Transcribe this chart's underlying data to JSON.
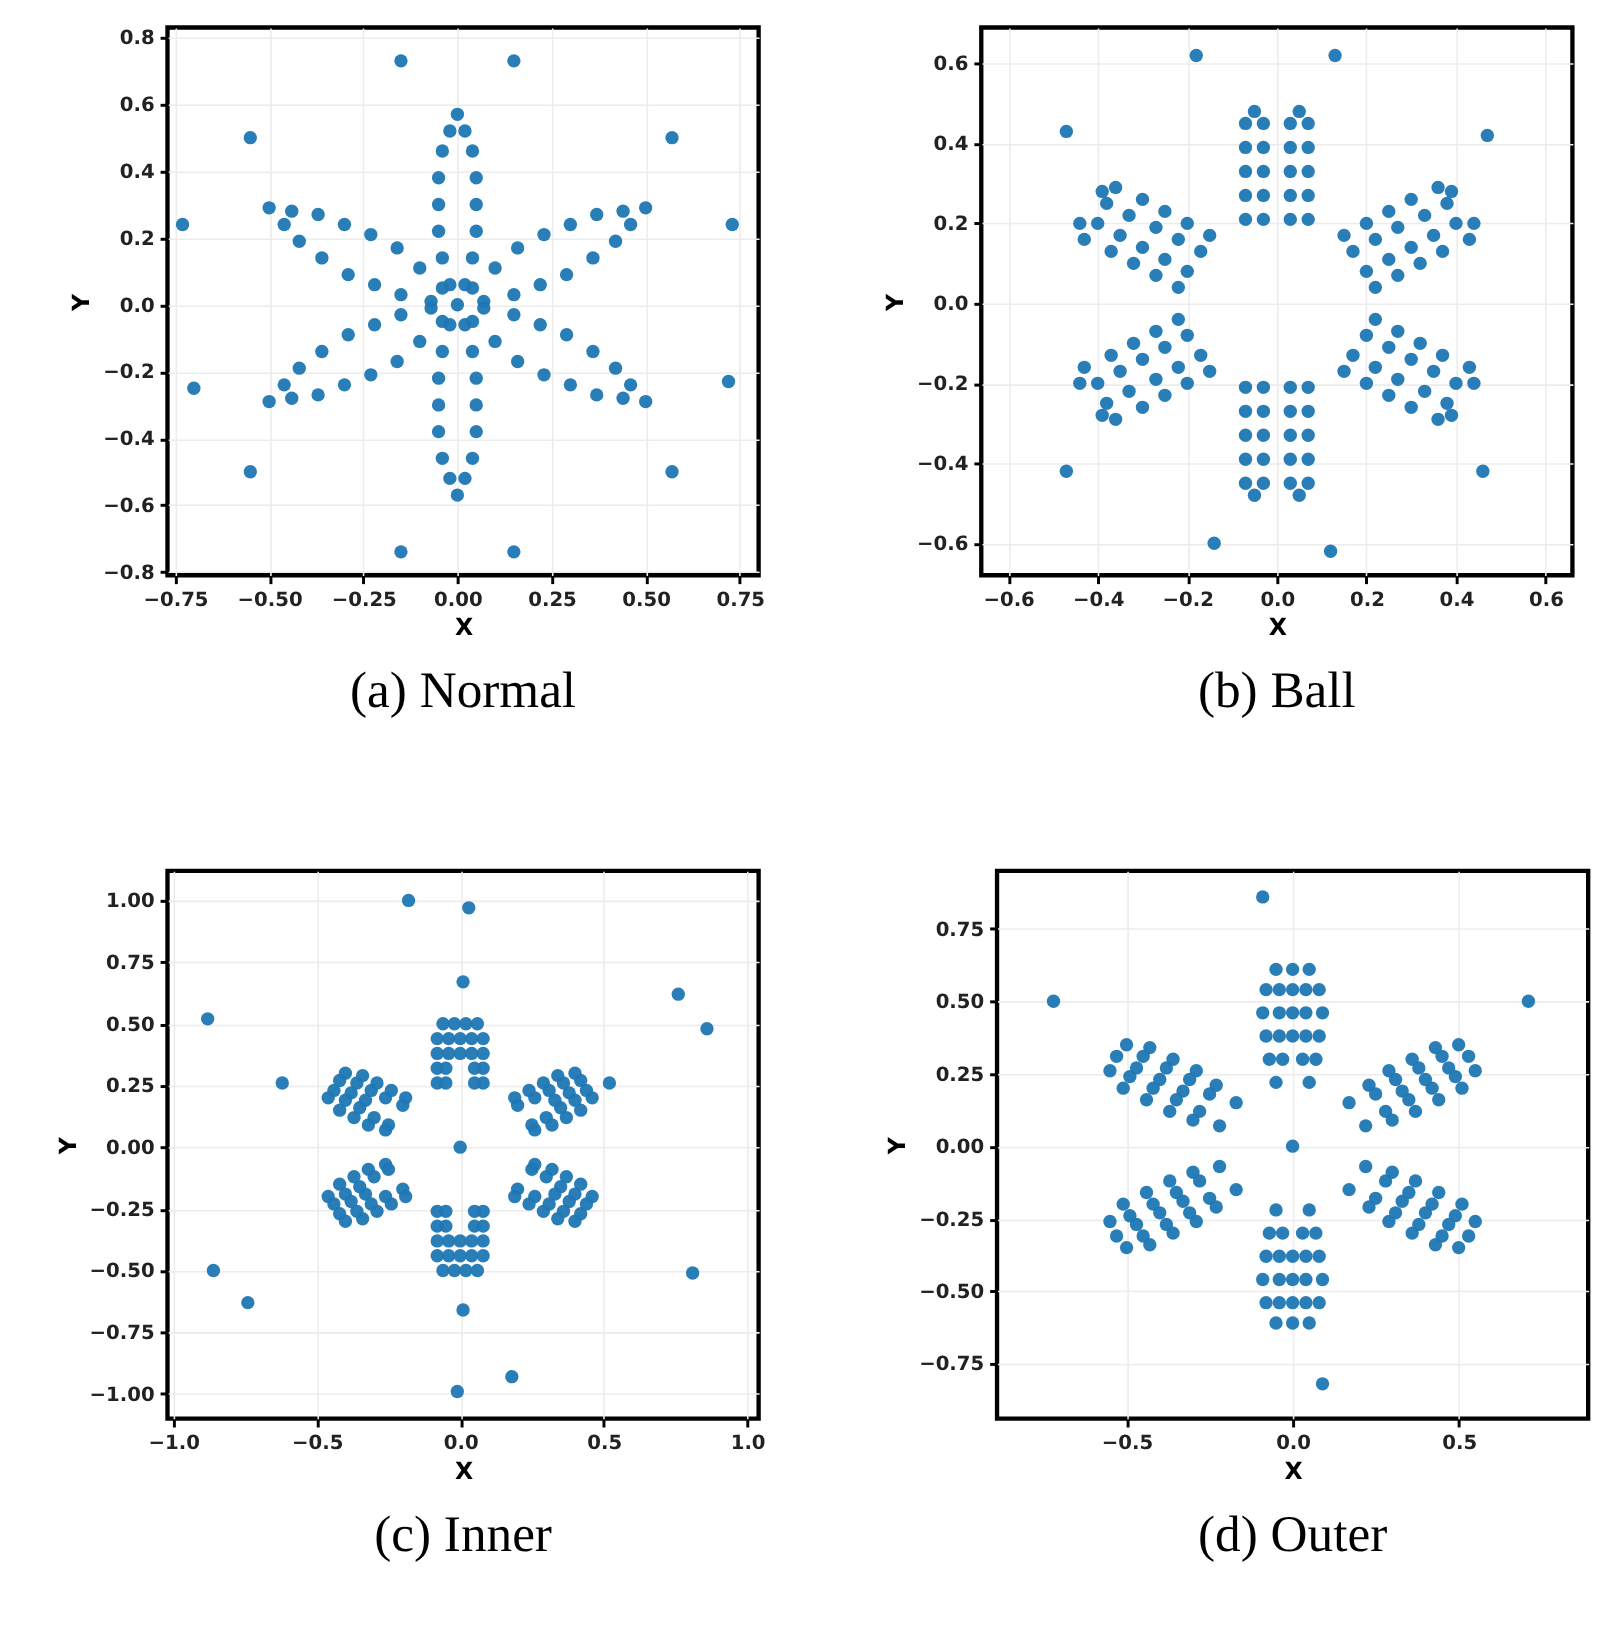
{
  "chart_data": [
    {
      "type": "scatter",
      "title": "(a) Normal",
      "xlabel": "X",
      "ylabel": "Y",
      "xlim": [
        -0.77,
        0.8
      ],
      "ylim": [
        -0.81,
        0.83
      ],
      "xticks": [
        {
          "value": -0.75,
          "label": "−0.75"
        },
        {
          "value": -0.5,
          "label": "−0.50"
        },
        {
          "value": -0.25,
          "label": "−0.25"
        },
        {
          "value": 0,
          "label": "0.00"
        },
        0.25,
        {
          "value": 0.5,
          "label": "0.50"
        },
        0.75
      ],
      "yticks": [
        {
          "value": -0.8,
          "label": "−0.8"
        },
        {
          "value": -0.6,
          "label": "−0.6"
        },
        {
          "value": -0.4,
          "label": "−0.4"
        },
        {
          "value": -0.2,
          "label": "−0.2"
        },
        {
          "value": 0,
          "label": "0.0"
        },
        0.2,
        0.4,
        0.6,
        0.8
      ],
      "grid": true,
      "marker": "circle",
      "series": [
        {
          "color": "#1f77b4",
          "x": [
            0.02,
            -0.02,
            0.04,
            -0.04,
            0.05,
            -0.05,
            0.05,
            -0.05,
            0.05,
            -0.05,
            0.04,
            -0.04,
            0.02,
            -0.02,
            0,
            0.02,
            -0.02,
            0.04,
            -0.04,
            0.05,
            -0.05,
            0.05,
            -0.05,
            0.05,
            -0.05,
            0.04,
            -0.04,
            0.02,
            -0.02,
            0,
            0.04,
            0.07,
            0.1,
            0.15,
            0.16,
            0.22,
            0.23,
            0.29,
            0.3,
            0.36,
            0.37,
            0.42,
            0.44,
            0.46,
            0.5,
            -0.04,
            -0.07,
            -0.1,
            -0.15,
            -0.16,
            -0.22,
            -0.23,
            -0.29,
            -0.3,
            -0.36,
            -0.37,
            -0.42,
            -0.44,
            -0.46,
            -0.5,
            0.04,
            0.07,
            0.1,
            0.15,
            0.16,
            0.22,
            0.23,
            0.29,
            0.3,
            0.36,
            0.37,
            0.42,
            0.44,
            0.46,
            0.5,
            -0.04,
            -0.07,
            -0.1,
            -0.15,
            -0.16,
            -0.22,
            -0.23,
            -0.29,
            -0.3,
            -0.36,
            -0.37,
            -0.42,
            -0.44,
            -0.46,
            -0.5,
            -0.15,
            0.15,
            -0.55,
            0.57,
            -0.73,
            0.73,
            -0.7,
            0.72,
            -0.55,
            0.57,
            -0.15,
            0.15,
            0
          ],
          "values": [
            0.06,
            0.06,
            0.14,
            0.14,
            0.22,
            0.22,
            0.3,
            0.3,
            0.38,
            0.38,
            0.46,
            0.46,
            0.52,
            0.52,
            0.57,
            -0.06,
            -0.06,
            -0.14,
            -0.14,
            -0.22,
            -0.22,
            -0.3,
            -0.3,
            -0.38,
            -0.38,
            -0.46,
            -0.46,
            -0.52,
            -0.52,
            -0.57,
            0.05,
            0.01,
            0.11,
            0.03,
            0.17,
            0.06,
            0.21,
            0.09,
            0.24,
            0.14,
            0.27,
            0.19,
            0.28,
            0.24,
            0.29,
            0.05,
            0.01,
            0.11,
            0.03,
            0.17,
            0.06,
            0.21,
            0.09,
            0.24,
            0.14,
            0.27,
            0.19,
            0.28,
            0.24,
            0.29,
            -0.05,
            -0.01,
            -0.11,
            -0.03,
            -0.17,
            -0.06,
            -0.21,
            -0.09,
            -0.24,
            -0.14,
            -0.27,
            -0.19,
            -0.28,
            -0.24,
            -0.29,
            -0.05,
            -0.01,
            -0.11,
            -0.03,
            -0.17,
            -0.06,
            -0.21,
            -0.09,
            -0.24,
            -0.14,
            -0.27,
            -0.19,
            -0.28,
            -0.24,
            -0.29,
            0.73,
            0.73,
            0.5,
            0.5,
            0.24,
            0.24,
            -0.25,
            -0.23,
            -0.5,
            -0.5,
            -0.74,
            -0.74,
            0
          ]
        }
      ]
    },
    {
      "type": "scatter",
      "title": "(b) Ball",
      "xlabel": "X",
      "ylabel": "Y",
      "xlim": [
        -0.66,
        0.66
      ],
      "ylim": [
        -0.68,
        0.69
      ],
      "xticks": [
        {
          "value": -0.6,
          "label": "−0.6"
        },
        {
          "value": -0.4,
          "label": "−0.4"
        },
        {
          "value": -0.2,
          "label": "−0.2"
        },
        {
          "value": 0,
          "label": "0.0"
        },
        0.2,
        0.4,
        0.6
      ],
      "yticks": [
        {
          "value": -0.6,
          "label": "−0.6"
        },
        {
          "value": -0.4,
          "label": "−0.4"
        },
        {
          "value": -0.2,
          "label": "−0.2"
        },
        {
          "value": 0,
          "label": "0.0"
        },
        0.2,
        0.4,
        0.6
      ],
      "grid": true,
      "marker": "circle",
      "series": [
        {
          "color": "#1f77b4",
          "x": [
            -0.07,
            -0.03,
            0.03,
            0.07,
            -0.07,
            -0.03,
            0.03,
            0.07,
            -0.07,
            -0.03,
            0.03,
            0.07,
            -0.07,
            -0.03,
            0.03,
            0.07,
            -0.07,
            -0.03,
            0.03,
            0.07,
            -0.05,
            0.05,
            -0.07,
            -0.03,
            0.03,
            0.07,
            -0.07,
            -0.03,
            0.03,
            0.07,
            -0.07,
            -0.03,
            0.03,
            0.07,
            -0.07,
            -0.03,
            0.03,
            0.07,
            -0.07,
            -0.03,
            0.03,
            0.07,
            -0.05,
            0.05,
            0.17,
            0.2,
            0.15,
            0.22,
            0.22,
            0.25,
            0.2,
            0.27,
            0.27,
            0.3,
            0.25,
            0.32,
            0.33,
            0.35,
            0.3,
            0.37,
            0.38,
            0.4,
            0.36,
            0.43,
            0.39,
            0.44,
            -0.17,
            -0.2,
            -0.15,
            -0.22,
            -0.22,
            -0.25,
            -0.2,
            -0.27,
            -0.27,
            -0.3,
            -0.25,
            -0.32,
            -0.33,
            -0.35,
            -0.3,
            -0.37,
            -0.38,
            -0.4,
            -0.36,
            -0.43,
            -0.39,
            -0.44,
            0.17,
            0.2,
            0.15,
            0.22,
            0.22,
            0.25,
            0.2,
            0.27,
            0.27,
            0.3,
            0.25,
            0.32,
            0.33,
            0.35,
            0.3,
            0.37,
            0.38,
            0.4,
            0.36,
            0.43,
            0.39,
            0.44,
            -0.17,
            -0.2,
            -0.15,
            -0.22,
            -0.22,
            -0.25,
            -0.2,
            -0.27,
            -0.27,
            -0.3,
            -0.25,
            -0.32,
            -0.33,
            -0.35,
            -0.3,
            -0.37,
            -0.38,
            -0.4,
            -0.36,
            -0.43,
            -0.39,
            -0.44,
            -0.47,
            0.47,
            -0.18,
            0.13,
            -0.47,
            0.46,
            -0.14,
            0.12
          ],
          "values": [
            0.21,
            0.21,
            0.21,
            0.21,
            0.27,
            0.27,
            0.27,
            0.27,
            0.33,
            0.33,
            0.33,
            0.33,
            0.39,
            0.39,
            0.39,
            0.39,
            0.45,
            0.45,
            0.45,
            0.45,
            0.48,
            0.48,
            -0.21,
            -0.21,
            -0.21,
            -0.21,
            -0.27,
            -0.27,
            -0.27,
            -0.27,
            -0.33,
            -0.33,
            -0.33,
            -0.33,
            -0.39,
            -0.39,
            -0.39,
            -0.39,
            -0.45,
            -0.45,
            -0.45,
            -0.45,
            -0.48,
            -0.48,
            0.13,
            0.08,
            0.17,
            0.04,
            0.16,
            0.11,
            0.2,
            0.07,
            0.19,
            0.14,
            0.23,
            0.1,
            0.22,
            0.17,
            0.26,
            0.13,
            0.25,
            0.2,
            0.29,
            0.16,
            0.28,
            0.2,
            0.13,
            0.08,
            0.17,
            0.04,
            0.16,
            0.11,
            0.2,
            0.07,
            0.19,
            0.14,
            0.23,
            0.1,
            0.22,
            0.17,
            0.26,
            0.13,
            0.25,
            0.2,
            0.29,
            0.16,
            0.28,
            0.2,
            -0.13,
            -0.08,
            -0.17,
            -0.04,
            -0.16,
            -0.11,
            -0.2,
            -0.07,
            -0.19,
            -0.14,
            -0.23,
            -0.1,
            -0.22,
            -0.17,
            -0.26,
            -0.13,
            -0.25,
            -0.2,
            -0.29,
            -0.16,
            -0.28,
            -0.2,
            -0.13,
            -0.08,
            -0.17,
            -0.04,
            -0.16,
            -0.11,
            -0.2,
            -0.07,
            -0.19,
            -0.14,
            -0.23,
            -0.1,
            -0.22,
            -0.17,
            -0.26,
            -0.13,
            -0.25,
            -0.2,
            -0.29,
            -0.16,
            -0.28,
            -0.2,
            0.43,
            0.42,
            0.62,
            0.62,
            -0.42,
            -0.42,
            -0.6,
            -0.62
          ]
        }
      ]
    },
    {
      "type": "scatter",
      "title": "(c) Inner",
      "xlabel": "X",
      "ylabel": "Y",
      "xlim": [
        -1.02,
        1.04
      ],
      "ylim": [
        -1.1,
        1.12
      ],
      "xticks": [
        {
          "value": -1,
          "label": "−1.0"
        },
        {
          "value": -0.5,
          "label": "−0.5"
        },
        {
          "value": 0,
          "label": "0.0"
        },
        0.5,
        {
          "value": 1,
          "label": "1.0"
        }
      ],
      "yticks": [
        {
          "value": -1,
          "label": "−1.00"
        },
        {
          "value": -0.75,
          "label": "−0.75"
        },
        {
          "value": -0.5,
          "label": "−0.50"
        },
        {
          "value": -0.25,
          "label": "−0.25"
        },
        {
          "value": 0,
          "label": "0.00"
        },
        0.25,
        {
          "value": 0.5,
          "label": "0.50"
        },
        0.75,
        {
          "value": 1,
          "label": "1.00"
        }
      ],
      "grid": true,
      "marker": "circle",
      "series": [
        {
          "color": "#1f77b4",
          "x": [
            -0.08,
            -0.05,
            0.05,
            0.08,
            -0.08,
            -0.05,
            0.05,
            0.08,
            -0.08,
            -0.04,
            0,
            0.04,
            0.08,
            -0.08,
            -0.04,
            0,
            0.04,
            0.08,
            -0.06,
            -0.02,
            0.02,
            0.06,
            -0.08,
            -0.05,
            0.05,
            0.08,
            -0.08,
            -0.05,
            0.05,
            0.08,
            -0.08,
            -0.04,
            0,
            0.04,
            0.08,
            -0.08,
            -0.04,
            0,
            0.04,
            0.08,
            -0.06,
            -0.02,
            0.02,
            0.06,
            0.26,
            0.25,
            0.2,
            0.19,
            0.32,
            0.3,
            0.26,
            0.24,
            0.37,
            0.35,
            0.33,
            0.31,
            0.29,
            0.42,
            0.4,
            0.38,
            0.36,
            0.34,
            0.46,
            0.44,
            0.42,
            0.4,
            -0.26,
            -0.25,
            -0.2,
            -0.19,
            -0.32,
            -0.3,
            -0.26,
            -0.24,
            -0.37,
            -0.35,
            -0.33,
            -0.31,
            -0.29,
            -0.42,
            -0.4,
            -0.38,
            -0.36,
            -0.34,
            -0.46,
            -0.44,
            -0.42,
            -0.4,
            0.26,
            0.25,
            0.2,
            0.19,
            0.32,
            0.3,
            0.26,
            0.24,
            0.37,
            0.35,
            0.33,
            0.31,
            0.29,
            0.42,
            0.4,
            0.38,
            0.36,
            0.34,
            0.46,
            0.44,
            0.42,
            0.4,
            -0.26,
            -0.25,
            -0.2,
            -0.19,
            -0.32,
            -0.3,
            -0.26,
            -0.24,
            -0.37,
            -0.35,
            -0.33,
            -0.31,
            -0.29,
            -0.42,
            -0.4,
            -0.38,
            -0.36,
            -0.34,
            -0.46,
            -0.44,
            -0.42,
            -0.4,
            -0.18,
            0.03,
            -0.88,
            0.76,
            0.86,
            -0.86,
            -0.74,
            0.81,
            -0.01,
            0.18,
            0.01,
            0.01,
            -0.62,
            0.52,
            0
          ],
          "values": [
            0.26,
            0.26,
            0.26,
            0.26,
            0.32,
            0.32,
            0.32,
            0.32,
            0.38,
            0.38,
            0.38,
            0.38,
            0.38,
            0.44,
            0.44,
            0.44,
            0.44,
            0.44,
            0.5,
            0.5,
            0.5,
            0.5,
            -0.26,
            -0.26,
            -0.26,
            -0.26,
            -0.32,
            -0.32,
            -0.32,
            -0.32,
            -0.38,
            -0.38,
            -0.38,
            -0.38,
            -0.38,
            -0.44,
            -0.44,
            -0.44,
            -0.44,
            -0.44,
            -0.5,
            -0.5,
            -0.5,
            -0.5,
            0.07,
            0.09,
            0.17,
            0.2,
            0.09,
            0.12,
            0.2,
            0.23,
            0.12,
            0.16,
            0.19,
            0.23,
            0.26,
            0.15,
            0.19,
            0.22,
            0.26,
            0.29,
            0.2,
            0.23,
            0.27,
            0.3,
            0.07,
            0.09,
            0.17,
            0.2,
            0.09,
            0.12,
            0.2,
            0.23,
            0.12,
            0.16,
            0.19,
            0.23,
            0.26,
            0.15,
            0.19,
            0.22,
            0.26,
            0.29,
            0.2,
            0.23,
            0.27,
            0.3,
            -0.07,
            -0.09,
            -0.17,
            -0.2,
            -0.09,
            -0.12,
            -0.2,
            -0.23,
            -0.12,
            -0.16,
            -0.19,
            -0.23,
            -0.26,
            -0.15,
            -0.19,
            -0.22,
            -0.26,
            -0.29,
            -0.2,
            -0.23,
            -0.27,
            -0.3,
            -0.07,
            -0.09,
            -0.17,
            -0.2,
            -0.09,
            -0.12,
            -0.2,
            -0.23,
            -0.12,
            -0.16,
            -0.19,
            -0.23,
            -0.26,
            -0.15,
            -0.19,
            -0.22,
            -0.26,
            -0.29,
            -0.2,
            -0.23,
            -0.27,
            -0.3,
            1.0,
            0.97,
            0.52,
            0.62,
            0.48,
            -0.5,
            -0.63,
            -0.51,
            -0.99,
            -0.93,
            0.67,
            -0.66,
            0.26,
            0.26,
            0
          ]
        }
      ]
    },
    {
      "type": "scatter",
      "title": "(d) Outer",
      "xlabel": "X",
      "ylabel": "Y",
      "xlim": [
        -0.89,
        0.89
      ],
      "ylim": [
        -0.94,
        0.95
      ],
      "xticks": [
        {
          "value": -0.5,
          "label": "−0.5"
        },
        {
          "value": 0,
          "label": "0.0"
        },
        0.5
      ],
      "yticks": [
        {
          "value": -0.75,
          "label": "−0.75"
        },
        {
          "value": -0.5,
          "label": "−0.50"
        },
        {
          "value": -0.25,
          "label": "−0.25"
        },
        {
          "value": 0,
          "label": "0.00"
        },
        0.25,
        {
          "value": 0.5,
          "label": "0.50"
        },
        0.75
      ],
      "grid": true,
      "marker": "circle",
      "series": [
        {
          "color": "#1f77b4",
          "x": [
            -0.05,
            0.05,
            -0.07,
            -0.03,
            0.03,
            0.07,
            -0.08,
            -0.04,
            0,
            0.04,
            0.08,
            -0.09,
            -0.04,
            0,
            0.04,
            0.09,
            -0.08,
            -0.04,
            0,
            0.04,
            0.08,
            -0.05,
            0,
            0.05,
            -0.05,
            0.05,
            -0.07,
            -0.03,
            0.03,
            0.07,
            -0.08,
            -0.04,
            0,
            0.04,
            0.08,
            -0.09,
            -0.04,
            0,
            0.04,
            0.09,
            -0.08,
            -0.04,
            0,
            0.04,
            0.08,
            -0.05,
            0,
            0.05,
            0.22,
            0.17,
            0.3,
            0.28,
            0.25,
            0.23,
            0.37,
            0.35,
            0.33,
            0.31,
            0.29,
            0.44,
            0.42,
            0.4,
            0.38,
            0.36,
            0.51,
            0.49,
            0.47,
            0.45,
            0.43,
            0.55,
            0.53,
            0.5,
            -0.22,
            -0.17,
            -0.3,
            -0.28,
            -0.25,
            -0.23,
            -0.37,
            -0.35,
            -0.33,
            -0.31,
            -0.29,
            -0.44,
            -0.42,
            -0.4,
            -0.38,
            -0.36,
            -0.51,
            -0.49,
            -0.47,
            -0.45,
            -0.43,
            -0.55,
            -0.53,
            -0.5,
            0.22,
            0.17,
            0.3,
            0.28,
            0.25,
            0.23,
            0.37,
            0.35,
            0.33,
            0.31,
            0.29,
            0.44,
            0.42,
            0.4,
            0.38,
            0.36,
            0.51,
            0.49,
            0.47,
            0.45,
            0.43,
            0.55,
            0.53,
            0.5,
            -0.22,
            -0.17,
            -0.3,
            -0.28,
            -0.25,
            -0.23,
            -0.37,
            -0.35,
            -0.33,
            -0.31,
            -0.29,
            -0.44,
            -0.42,
            -0.4,
            -0.38,
            -0.36,
            -0.51,
            -0.49,
            -0.47,
            -0.45,
            -0.43,
            -0.55,
            -0.53,
            -0.5,
            -0.09,
            0.71,
            -0.72,
            0.09,
            0
          ],
          "values": [
            0.22,
            0.22,
            0.3,
            0.3,
            0.3,
            0.3,
            0.38,
            0.38,
            0.38,
            0.38,
            0.38,
            0.46,
            0.46,
            0.46,
            0.46,
            0.46,
            0.54,
            0.54,
            0.54,
            0.54,
            0.54,
            0.61,
            0.61,
            0.61,
            -0.22,
            -0.22,
            -0.3,
            -0.3,
            -0.3,
            -0.3,
            -0.38,
            -0.38,
            -0.38,
            -0.38,
            -0.38,
            -0.46,
            -0.46,
            -0.46,
            -0.46,
            -0.46,
            -0.54,
            -0.54,
            -0.54,
            -0.54,
            -0.54,
            -0.61,
            -0.61,
            -0.61,
            0.07,
            0.15,
            0.09,
            0.12,
            0.18,
            0.21,
            0.12,
            0.16,
            0.19,
            0.23,
            0.26,
            0.16,
            0.2,
            0.23,
            0.27,
            0.3,
            0.2,
            0.24,
            0.27,
            0.31,
            0.34,
            0.26,
            0.31,
            0.35,
            0.07,
            0.15,
            0.09,
            0.12,
            0.18,
            0.21,
            0.12,
            0.16,
            0.19,
            0.23,
            0.26,
            0.16,
            0.2,
            0.23,
            0.27,
            0.3,
            0.2,
            0.24,
            0.27,
            0.31,
            0.34,
            0.26,
            0.31,
            0.35,
            -0.07,
            -0.15,
            -0.09,
            -0.12,
            -0.18,
            -0.21,
            -0.12,
            -0.16,
            -0.19,
            -0.23,
            -0.26,
            -0.16,
            -0.2,
            -0.23,
            -0.27,
            -0.3,
            -0.2,
            -0.24,
            -0.27,
            -0.31,
            -0.34,
            -0.26,
            -0.31,
            -0.35,
            -0.07,
            -0.15,
            -0.09,
            -0.12,
            -0.18,
            -0.21,
            -0.12,
            -0.16,
            -0.19,
            -0.23,
            -0.26,
            -0.16,
            -0.2,
            -0.23,
            -0.27,
            -0.3,
            -0.2,
            -0.24,
            -0.27,
            -0.31,
            -0.34,
            -0.26,
            -0.31,
            -0.35,
            0.86,
            0.5,
            0.5,
            -0.82,
            0
          ]
        }
      ]
    }
  ]
}
